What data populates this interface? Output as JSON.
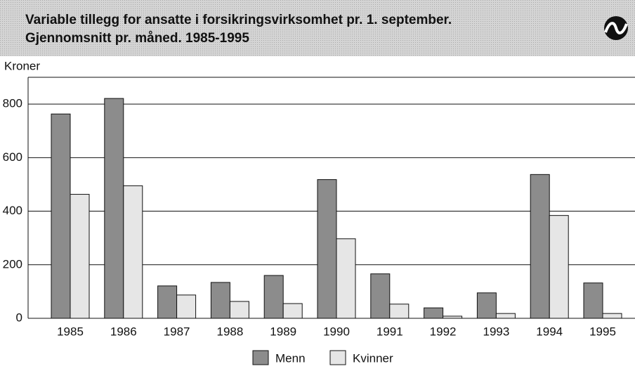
{
  "chart_data": {
    "type": "bar",
    "title_lines": [
      "Variable tillegg for ansatte i forsikringsvirksomhet pr. 1. september.",
      "Gjennomsnitt pr. måned. 1985-1995"
    ],
    "y_label": "Kroner",
    "categories": [
      "1985",
      "1986",
      "1987",
      "1988",
      "1989",
      "1990",
      "1991",
      "1992",
      "1993",
      "1994",
      "1995"
    ],
    "series": [
      {
        "name": "Menn",
        "color": "#8c8c8c",
        "values": [
          763,
          821,
          121,
          134,
          160,
          518,
          166,
          39,
          95,
          537,
          132
        ]
      },
      {
        "name": "Kvinner",
        "color": "#e6e6e6",
        "values": [
          463,
          495,
          87,
          63,
          55,
          297,
          53,
          8,
          18,
          384,
          18
        ]
      }
    ],
    "ylim": [
      0,
      900
    ],
    "yticks": [
      0,
      200,
      400,
      600,
      800
    ],
    "grid": true
  }
}
